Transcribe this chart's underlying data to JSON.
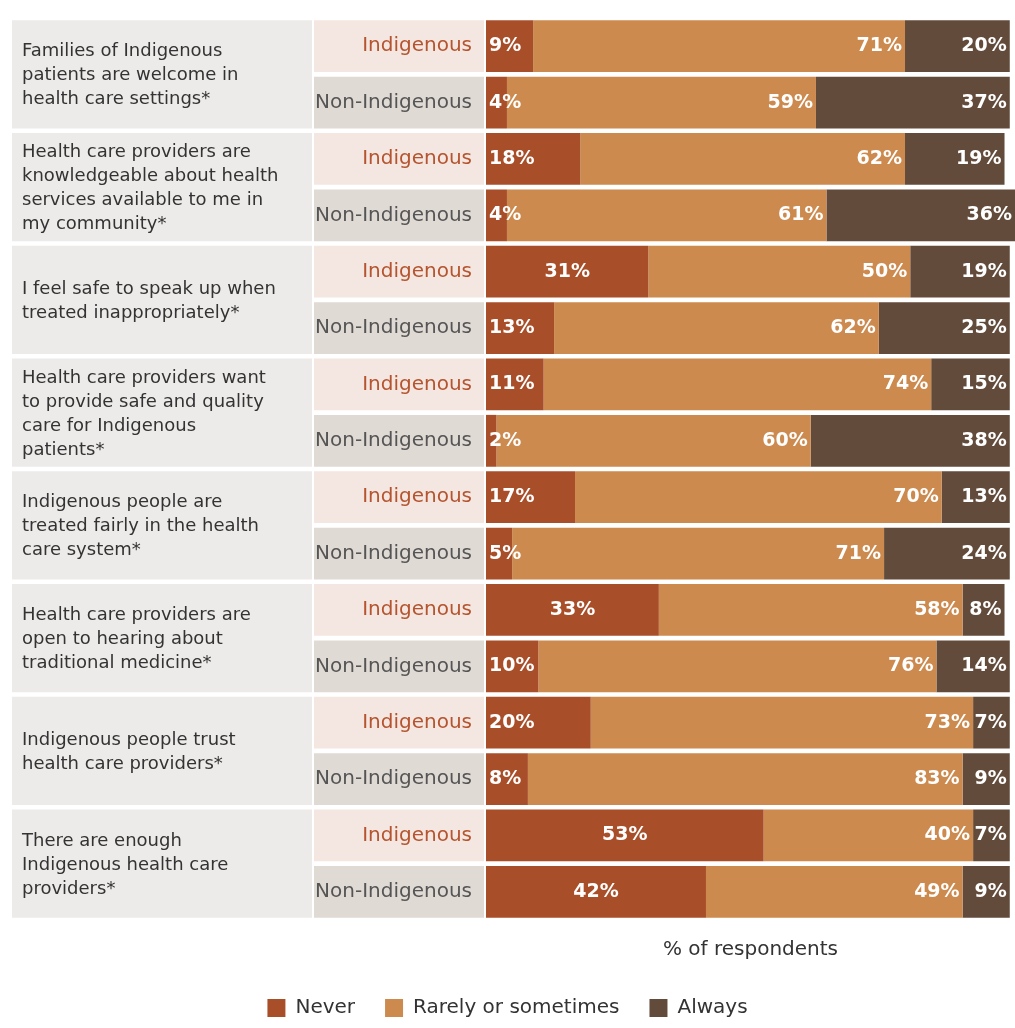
{
  "chart_data": {
    "type": "bar",
    "orientation": "horizontal",
    "stacked": true,
    "xlabel": "% of respondents",
    "categories": [
      "Indigenous",
      "Non-Indigenous",
      "Indigenous",
      "Non-Indigenous",
      "Indigenous",
      "Non-Indigenous",
      "Indigenous",
      "Non-Indigenous",
      "Indigenous",
      "Non-Indigenous",
      "Indigenous",
      "Non-Indigenous",
      "Indigenous",
      "Non-Indigenous",
      "Indigenous",
      "Non-Indigenous"
    ],
    "annotations": [
      "Families of Indigenous patients are welcome in health care settings*",
      "Health care providers are knowledgeable about health services available to me in my community*",
      "I feel safe to speak up when treated inappropriately*",
      "Health care providers want to provide safe and quality care for Indigenous patients*",
      "Indigenous people are treated fairly in the health care system*",
      "Health care providers are open to hearing about traditional medicine*",
      "Indigenous people trust health care providers*",
      "There are enough Indigenous health care providers*"
    ],
    "series": [
      {
        "name": "Never",
        "color": "#a84f2a",
        "values": [
          9,
          4,
          18,
          4,
          31,
          13,
          11,
          2,
          17,
          5,
          33,
          10,
          20,
          8,
          53,
          42
        ],
        "value_labels": [
          "9%",
          "4%",
          "18%",
          "4%",
          "31%",
          "13%",
          "11%",
          "2%",
          "17%",
          "5%",
          "33%",
          "10%",
          "20%",
          "8%",
          "53%",
          "42%"
        ]
      },
      {
        "name": "Rarely or sometimes",
        "color": "#cc8a4e",
        "values": [
          71,
          59,
          62,
          61,
          50,
          62,
          74,
          60,
          70,
          71,
          58,
          76,
          73,
          83,
          40,
          49
        ],
        "value_labels": [
          "71%",
          "59%",
          "62%",
          "61%",
          "50%",
          "62%",
          "74%",
          "60%",
          "70%",
          "71%",
          "58%",
          "76%",
          "73%",
          "83%",
          "40%",
          "49%"
        ]
      },
      {
        "name": "Always",
        "color": "#634b3c",
        "values": [
          20,
          37,
          19,
          36,
          19,
          25,
          15,
          38,
          13,
          24,
          8,
          14,
          7,
          9,
          7,
          9
        ],
        "value_labels": [
          "20%",
          "37%",
          "19%",
          "36%",
          "19%",
          "25%",
          "15%",
          "38%",
          "13%",
          "24%",
          "8%",
          "14%",
          "7%",
          "9%",
          "7%",
          "9%"
        ]
      }
    ],
    "tick_labels": "y",
    "legend": "bottom"
  }
}
